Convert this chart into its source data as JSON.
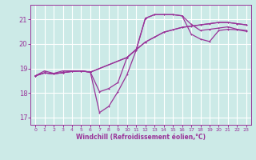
{
  "xlabel": "Windchill (Refroidissement éolien,°C)",
  "bg_color": "#cceae7",
  "grid_color": "#ffffff",
  "line_color": "#993399",
  "xlim": [
    -0.5,
    23.5
  ],
  "ylim": [
    16.7,
    21.6
  ],
  "yticks": [
    17,
    18,
    19,
    20,
    21
  ],
  "xticks": [
    0,
    1,
    2,
    3,
    4,
    5,
    6,
    7,
    8,
    9,
    10,
    11,
    12,
    13,
    14,
    15,
    16,
    17,
    18,
    19,
    20,
    21,
    22,
    23
  ],
  "line1_x": [
    0,
    1,
    2,
    3,
    4,
    5,
    6,
    7,
    8,
    9,
    10,
    11,
    12,
    13,
    14,
    15,
    16,
    17,
    18,
    19,
    20,
    21,
    22,
    23
  ],
  "line1_y": [
    18.7,
    18.9,
    18.8,
    18.9,
    18.9,
    18.9,
    18.85,
    17.2,
    17.45,
    18.05,
    18.75,
    19.75,
    21.05,
    21.2,
    21.2,
    21.2,
    21.15,
    20.8,
    20.55,
    20.6,
    20.65,
    20.7,
    20.6,
    20.55
  ],
  "line2_x": [
    0,
    1,
    2,
    3,
    4,
    5,
    6,
    7,
    8,
    9,
    10,
    11,
    12,
    13,
    14,
    15,
    16,
    17,
    18,
    19,
    20,
    21,
    22,
    23
  ],
  "line2_y": [
    18.7,
    18.82,
    18.78,
    18.83,
    18.88,
    18.9,
    18.85,
    18.05,
    18.18,
    18.42,
    19.45,
    19.78,
    20.08,
    20.28,
    20.48,
    20.58,
    20.68,
    20.73,
    20.78,
    20.83,
    20.88,
    20.88,
    20.83,
    20.78
  ],
  "line3_x": [
    0,
    1,
    2,
    3,
    4,
    5,
    6,
    10,
    11,
    12,
    13,
    14,
    15,
    16,
    17,
    18,
    19,
    20,
    21,
    22,
    23
  ],
  "line3_y": [
    18.7,
    18.82,
    18.78,
    18.83,
    18.88,
    18.9,
    18.85,
    19.45,
    19.78,
    21.05,
    21.2,
    21.2,
    21.2,
    21.15,
    20.4,
    20.2,
    20.1,
    20.55,
    20.6,
    20.58,
    20.52
  ],
  "line4_x": [
    0,
    1,
    2,
    3,
    4,
    5,
    6,
    10,
    12,
    14,
    16,
    18,
    20,
    21,
    22,
    23
  ],
  "line4_y": [
    18.7,
    18.82,
    18.78,
    18.83,
    18.88,
    18.9,
    18.85,
    19.45,
    20.08,
    20.48,
    20.68,
    20.78,
    20.88,
    20.88,
    20.83,
    20.78
  ]
}
